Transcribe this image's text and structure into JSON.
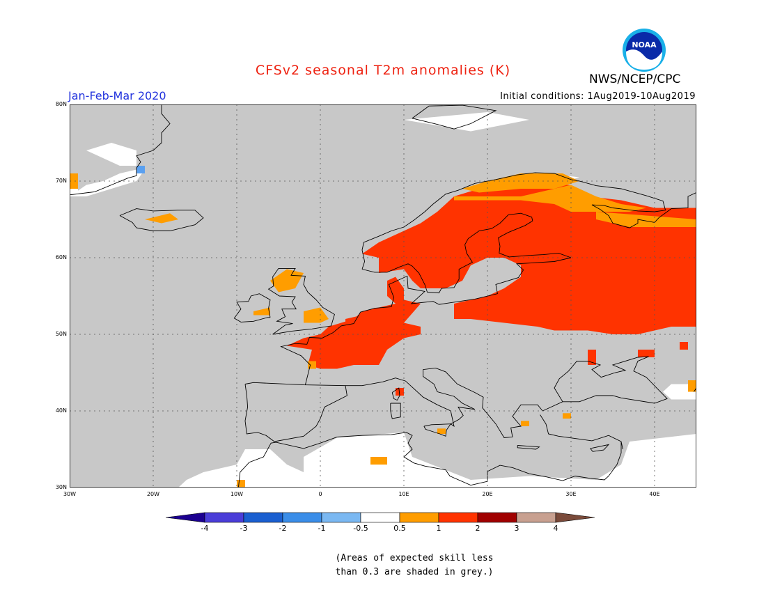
{
  "header": {
    "title": "CFSv2 seasonal T2m anomalies (K)",
    "agency": "NWS/NCEP/CPC",
    "period": "Jan-Feb-Mar 2020",
    "initial_conditions": "Initial conditions: 1Aug2019-10Aug2019",
    "logo_text": "NOAA"
  },
  "map": {
    "lon_range": [
      -30,
      45
    ],
    "lat_range": [
      30,
      80
    ],
    "lat_labels": [
      "80N",
      "70N",
      "60N",
      "50N",
      "40N",
      "30N"
    ],
    "lon_labels": [
      "30W",
      "20W",
      "10W",
      "0",
      "10E",
      "20E",
      "30E",
      "40E"
    ],
    "colors": {
      "ocean_grey": "#c8c8c8",
      "white": "#ffffff",
      "orange": "#ff9d00",
      "red_orange": "#ff3300",
      "light_blue": "#5aa0f0"
    }
  },
  "legend": {
    "labels": [
      "-4",
      "-3",
      "-2",
      "-1",
      "-0.5",
      "0.5",
      "1",
      "2",
      "3",
      "4"
    ],
    "colors": [
      "#1c0090",
      "#4a3dd8",
      "#1a5fd0",
      "#3a8de8",
      "#7ab8f2",
      "#ffffff",
      "#ff9d00",
      "#ff3300",
      "#a00000",
      "#c8a090",
      "#7a4a3a"
    ]
  },
  "note": {
    "line1": "(Areas of expected skill less",
    "line2": "than 0.3 are shaded in grey.)"
  }
}
